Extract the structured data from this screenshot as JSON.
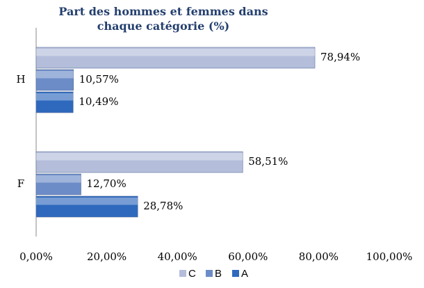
{
  "chart_data": {
    "type": "hbar",
    "title": "Part des hommes et femmes dans chaque catégorie (%)",
    "categories": [
      "H",
      "F"
    ],
    "series": [
      {
        "name": "C",
        "color": "#b4bedb",
        "values": [
          78.94,
          58.51
        ],
        "value_labels": [
          "78,94%",
          "58,51%"
        ]
      },
      {
        "name": "B",
        "color": "#6c8cc8",
        "values": [
          10.57,
          12.7
        ],
        "value_labels": [
          "10,57%",
          "12,70%"
        ]
      },
      {
        "name": "A",
        "color": "#2e69bd",
        "values": [
          10.49,
          28.78
        ],
        "value_labels": [
          "10,49%",
          "28,78%"
        ]
      }
    ],
    "xlim": [
      0,
      100
    ],
    "xticks": [
      {
        "value": 0,
        "label": "0,00%"
      },
      {
        "value": 20,
        "label": "20,00%"
      },
      {
        "value": 40,
        "label": "40,00%"
      },
      {
        "value": 60,
        "label": "60,00%"
      },
      {
        "value": 80,
        "label": "80,00%"
      },
      {
        "value": 100,
        "label": "100,00%"
      }
    ],
    "legend": "bottom"
  }
}
